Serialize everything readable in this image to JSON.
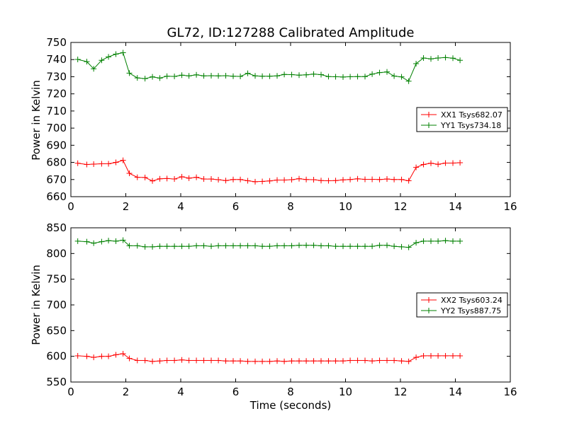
{
  "chart_data": [
    {
      "type": "line",
      "title": "GL72, ID:127288 Calibrated Amplitude",
      "xlabel": "",
      "ylabel": "Power in Kelvin",
      "xlim": [
        0,
        16
      ],
      "ylim": [
        660,
        750
      ],
      "xticks": [
        "0",
        "2",
        "4",
        "6",
        "8",
        "10",
        "12",
        "14",
        "16"
      ],
      "yticks": [
        "660",
        "670",
        "680",
        "690",
        "700",
        "710",
        "720",
        "730",
        "740",
        "750"
      ],
      "legend_position": "right",
      "grid": false,
      "x": [
        0.25,
        0.58,
        0.83,
        1.12,
        1.37,
        1.64,
        1.9,
        2.13,
        2.42,
        2.7,
        2.97,
        3.24,
        3.5,
        3.77,
        4.04,
        4.3,
        4.57,
        4.84,
        5.11,
        5.37,
        5.64,
        5.91,
        6.17,
        6.44,
        6.71,
        6.97,
        7.24,
        7.51,
        7.77,
        8.04,
        8.31,
        8.57,
        8.84,
        9.11,
        9.38,
        9.64,
        9.91,
        10.17,
        10.44,
        10.71,
        10.97,
        11.24,
        11.51,
        11.77,
        12.04,
        12.3,
        12.57,
        12.84,
        13.11,
        13.37,
        13.64,
        13.91,
        14.17
      ],
      "series": [
        {
          "name": "XX1 Tsys682.07",
          "color": "#ff0000",
          "values": [
            679.5,
            678.8,
            679.0,
            679.2,
            679.2,
            680.0,
            681.2,
            673.6,
            671.3,
            671.2,
            669.2,
            670.4,
            670.6,
            670.3,
            671.6,
            670.8,
            671.3,
            670.3,
            670.3,
            669.9,
            669.4,
            670.0,
            670.0,
            669.3,
            668.7,
            668.9,
            669.2,
            669.7,
            669.7,
            669.9,
            670.5,
            670.0,
            669.9,
            669.4,
            669.3,
            669.4,
            669.8,
            670.0,
            670.4,
            670.1,
            670.1,
            670.0,
            670.3,
            670.0,
            670.0,
            669.3,
            677.1,
            678.8,
            679.5,
            678.9,
            679.6,
            679.6,
            679.8
          ]
        },
        {
          "name": "YY1 Tsys734.18",
          "color": "#008000",
          "values": [
            740.1,
            738.8,
            734.6,
            739.6,
            741.6,
            743.2,
            744.0,
            732.1,
            729.3,
            728.9,
            729.9,
            729.2,
            730.3,
            730.2,
            730.9,
            730.5,
            731.1,
            730.5,
            730.6,
            730.5,
            730.6,
            730.3,
            730.2,
            732.0,
            730.5,
            730.3,
            730.3,
            730.5,
            731.3,
            731.2,
            730.9,
            731.1,
            731.5,
            731.2,
            730.1,
            730.0,
            729.8,
            730.0,
            730.1,
            730.1,
            731.5,
            732.4,
            732.8,
            730.4,
            729.9,
            727.4,
            737.6,
            740.9,
            740.4,
            740.9,
            741.2,
            740.8,
            739.6
          ]
        }
      ]
    },
    {
      "type": "line",
      "title": "",
      "xlabel": "Time (seconds)",
      "ylabel": "Power in Kelvin",
      "xlim": [
        0,
        16
      ],
      "ylim": [
        550,
        850
      ],
      "xticks": [
        "0",
        "2",
        "4",
        "6",
        "8",
        "10",
        "12",
        "14",
        "16"
      ],
      "yticks": [
        "550",
        "600",
        "650",
        "700",
        "750",
        "800",
        "850"
      ],
      "legend_position": "right",
      "grid": false,
      "x": [
        0.25,
        0.58,
        0.83,
        1.12,
        1.37,
        1.64,
        1.9,
        2.13,
        2.42,
        2.7,
        2.97,
        3.24,
        3.5,
        3.77,
        4.04,
        4.3,
        4.57,
        4.84,
        5.11,
        5.37,
        5.64,
        5.91,
        6.17,
        6.44,
        6.71,
        6.97,
        7.24,
        7.51,
        7.77,
        8.04,
        8.31,
        8.57,
        8.84,
        9.11,
        9.38,
        9.64,
        9.91,
        10.17,
        10.44,
        10.71,
        10.97,
        11.24,
        11.51,
        11.77,
        12.04,
        12.3,
        12.57,
        12.84,
        13.11,
        13.37,
        13.64,
        13.91,
        14.17
      ],
      "series": [
        {
          "name": "XX2 Tsys603.24",
          "color": "#ff0000",
          "values": [
            601,
            600,
            598,
            600,
            600,
            603,
            605,
            596,
            592,
            592,
            590,
            591,
            592,
            592,
            593,
            592,
            592,
            592,
            592,
            592,
            591,
            591,
            591,
            590,
            590,
            590,
            590,
            591,
            590,
            591,
            591,
            591,
            591,
            591,
            591,
            591,
            591,
            592,
            592,
            592,
            591,
            592,
            592,
            592,
            591,
            590,
            598,
            601,
            601,
            601,
            601,
            601,
            601
          ]
        },
        {
          "name": "YY2 Tsys887.75",
          "color": "#008000",
          "values": [
            824,
            823,
            820,
            823,
            825,
            824,
            826,
            815,
            815,
            813,
            813,
            814,
            814,
            814,
            814,
            814,
            815,
            815,
            814,
            815,
            815,
            815,
            815,
            815,
            815,
            814,
            814,
            815,
            815,
            815,
            816,
            816,
            816,
            815,
            815,
            814,
            814,
            814,
            814,
            814,
            814,
            816,
            816,
            814,
            813,
            812,
            821,
            824,
            824,
            824,
            825,
            824,
            824
          ]
        }
      ]
    }
  ]
}
